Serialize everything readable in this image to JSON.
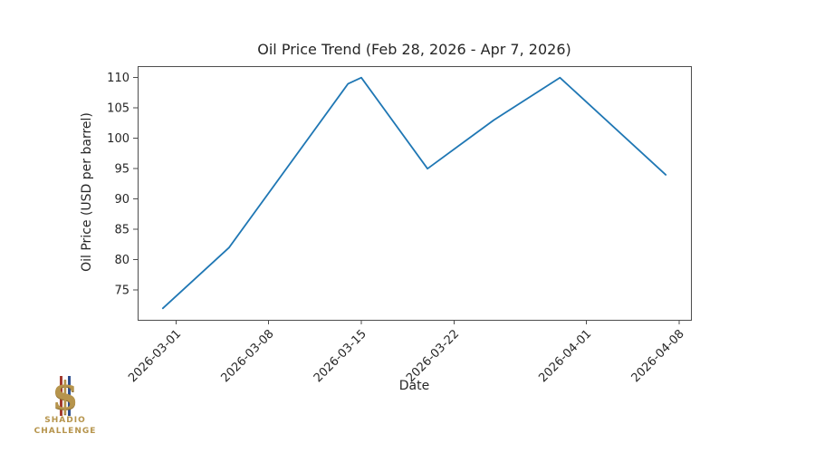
{
  "logo": {
    "symbol": "$",
    "line1": "SHADIO",
    "line2": "CHALLENGE",
    "gold": "#b6944c",
    "red": "#a33a2e",
    "blue": "#2e4f8e"
  },
  "chart_data": {
    "type": "line",
    "title": "Oil Price Trend (Feb 28, 2026 - Apr 7, 2026)",
    "xlabel": "Date",
    "ylabel": "Oil Price (USD per barrel)",
    "series": [
      {
        "name": "Oil Price",
        "x": [
          "2026-02-28",
          "2026-03-05",
          "2026-03-14",
          "2026-03-15",
          "2026-03-20",
          "2026-03-25",
          "2026-03-30",
          "2026-04-07"
        ],
        "values": [
          72,
          82,
          109,
          110,
          95,
          103,
          110,
          94
        ]
      }
    ],
    "x_ticks": [
      "2026-03-01",
      "2026-03-08",
      "2026-03-15",
      "2026-03-22",
      "2026-04-01",
      "2026-04-08"
    ],
    "y_ticks": [
      75,
      80,
      85,
      90,
      95,
      100,
      105,
      110
    ],
    "x_base_date": "2026-03-01",
    "xlim_days": [
      -2.9,
      38.9
    ],
    "ylim": [
      70.1,
      111.9
    ],
    "x_tick_rotation": 45,
    "grid": false,
    "legend": "none",
    "line_color": "#1f77b4",
    "axis_color": "#4d4d4d"
  }
}
